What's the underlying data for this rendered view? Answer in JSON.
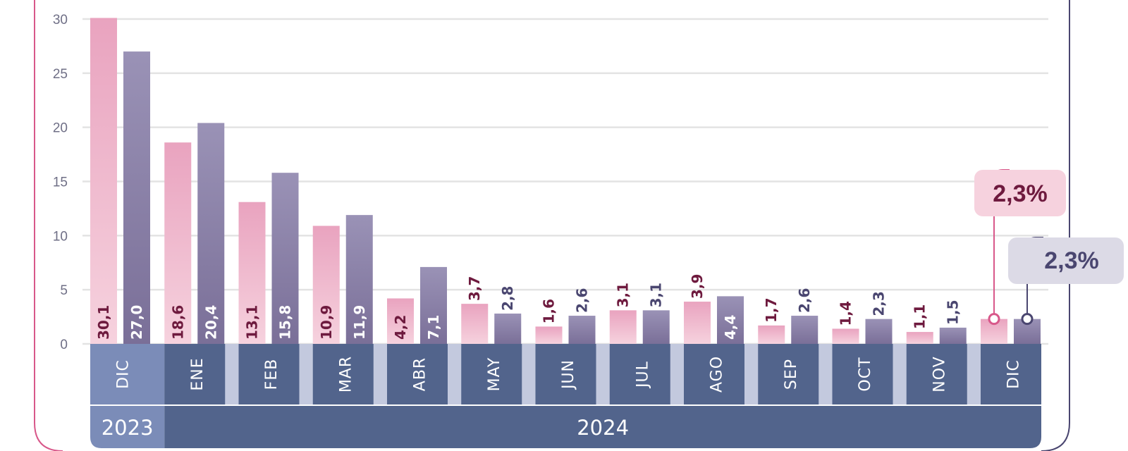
{
  "chart_data": {
    "type": "bar",
    "ylim": [
      0,
      30
    ],
    "yticks": [
      "0",
      "5",
      "10",
      "15",
      "20",
      "25",
      "30"
    ],
    "grid": true,
    "categories": [
      "DIC",
      "ENE",
      "FEB",
      "MAR",
      "ABR",
      "MAY",
      "JUN",
      "JUL",
      "AGO",
      "SEP",
      "OCT",
      "NOV",
      "DIC"
    ],
    "category_labels": [
      "DIC",
      "ENE",
      "FEB",
      "MAR",
      "ABR",
      "MAY",
      "JUN",
      "JUL",
      "AGO",
      "SEP",
      "OCT",
      "NOV",
      "DIC"
    ],
    "year_groups": [
      {
        "label": "2023",
        "count": 1
      },
      {
        "label": "2024",
        "count": 12
      }
    ],
    "series": [
      {
        "values": [
          30.1,
          18.6,
          13.1,
          10.9,
          4.2,
          3.7,
          1.6,
          3.1,
          3.9,
          1.7,
          1.4,
          1.1,
          2.3
        ],
        "value_labels": [
          "30,1",
          "18,6",
          "13,1",
          "10,9",
          "4,2",
          "3,7",
          "1,6",
          "3,1",
          "3,9",
          "1,7",
          "1,4",
          "1,1",
          ""
        ],
        "color": "#e9a3bf",
        "label_color": "#6e1a3e"
      },
      {
        "values": [
          27.0,
          20.4,
          15.8,
          11.9,
          7.1,
          2.8,
          2.6,
          3.1,
          4.4,
          2.6,
          2.3,
          1.5,
          2.3
        ],
        "value_labels": [
          "27,0",
          "20,4",
          "15,8",
          "11,9",
          "7,1",
          "2,8",
          "2,6",
          "3,1",
          "4,4",
          "2,6",
          "2,3",
          "1,5",
          ""
        ],
        "color": "#8a7fa8",
        "label_color": "#4a4670"
      }
    ],
    "callouts": [
      {
        "series": 0,
        "text": "2,3%",
        "bg": "#f6d2de",
        "color": "#6e1a3e",
        "line": "#d8588a"
      },
      {
        "series": 1,
        "text": "2,3%",
        "bg": "#dcdae6",
        "color": "#4a4670",
        "line": "#4a4670"
      }
    ],
    "colors": {
      "axis_band": "#52648c",
      "axis_band_first": "#7b8cb8",
      "axis_gap": "#c3c9de",
      "grid": "#e3e3e3",
      "frame_left": "#d8588a",
      "frame_right": "#4a4670"
    }
  }
}
